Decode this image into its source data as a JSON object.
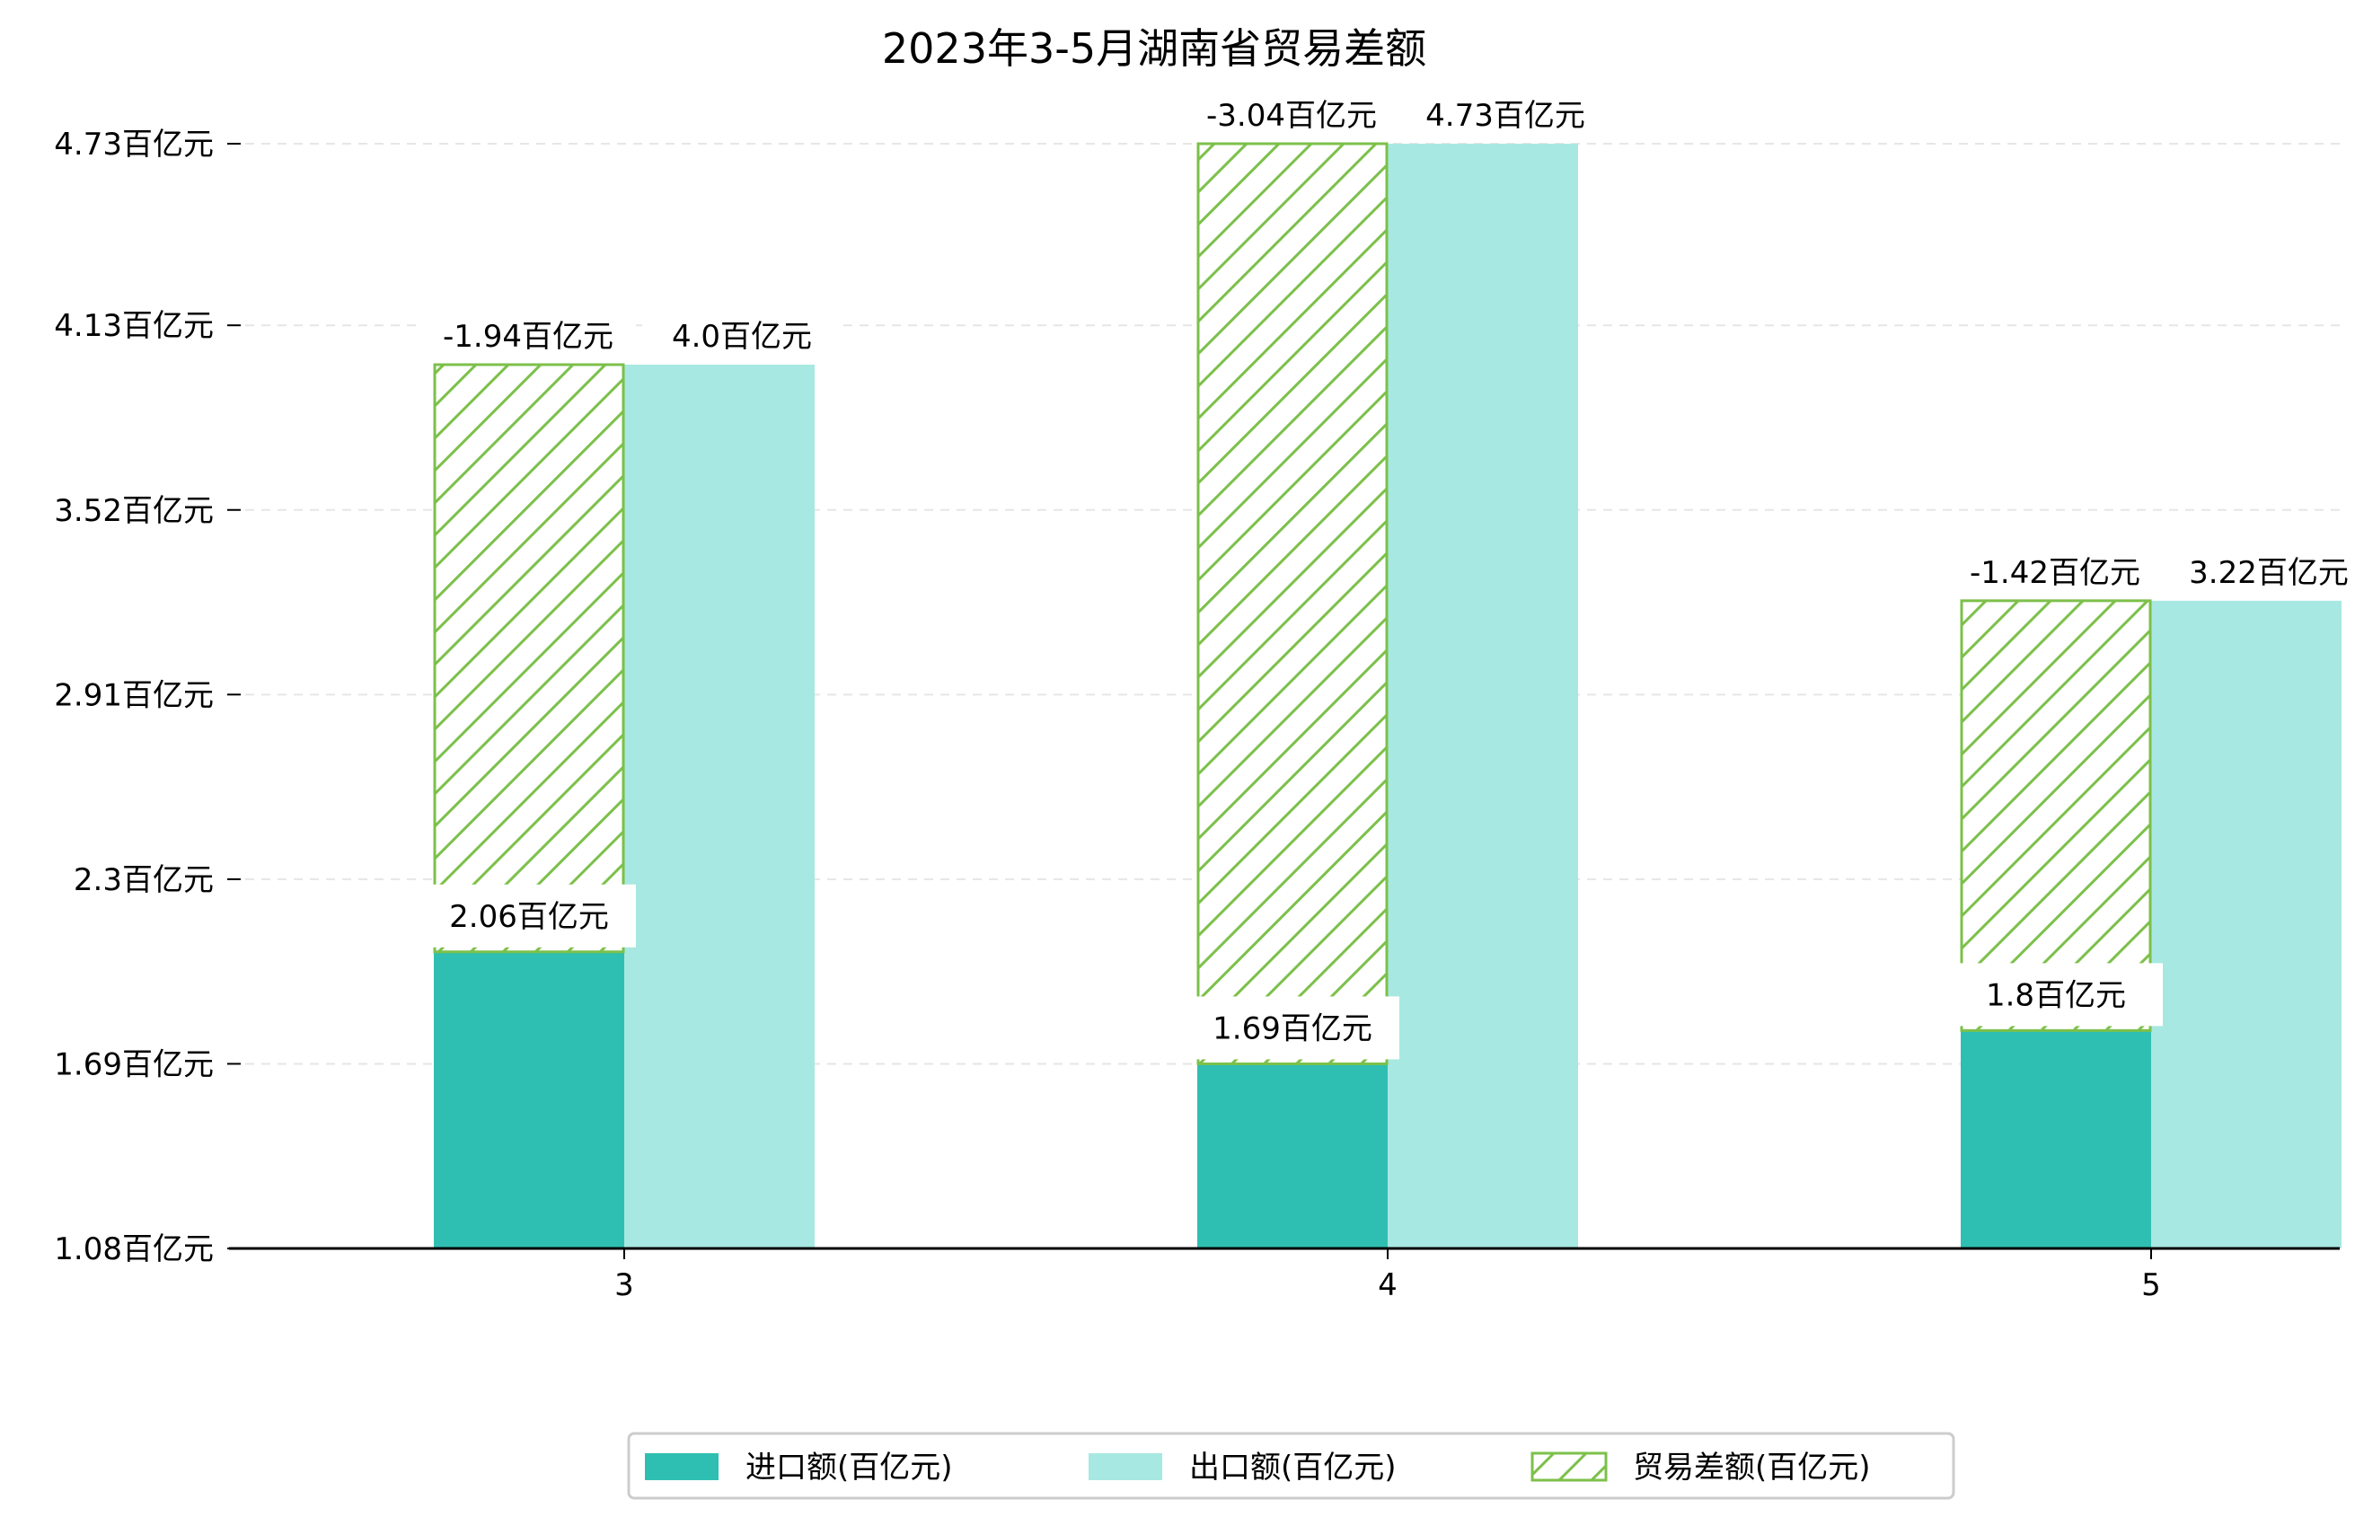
{
  "chart_data": {
    "type": "bar",
    "title": "2023年3-5月湖南省贸易差额",
    "categories": [
      "3",
      "4",
      "5"
    ],
    "y_unit": "百亿元",
    "ylim": [
      1.08,
      4.73
    ],
    "yticks": [
      "1.08百亿元",
      "1.69百亿元",
      "2.3百亿元",
      "2.91百亿元",
      "3.52百亿元",
      "4.13百亿元",
      "4.73百亿元"
    ],
    "ytick_values": [
      1.08,
      1.69,
      2.3,
      2.91,
      3.52,
      4.13,
      4.73
    ],
    "grid": "horizontal dashed",
    "legend_position": "bottom",
    "series": [
      {
        "name": "进口额(百亿元)",
        "values": [
          2.06,
          1.69,
          1.8
        ],
        "labels": [
          "2.06百亿元",
          "1.69百亿元",
          "1.8百亿元"
        ],
        "color": "#2fbfb2"
      },
      {
        "name": "出口额(百亿元)",
        "values": [
          4.0,
          4.73,
          3.22
        ],
        "labels": [
          "4.0百亿元",
          "4.73百亿元",
          "3.22百亿元"
        ],
        "color": "#a8e8e2"
      },
      {
        "name": "贸易差额(百亿元)",
        "values": [
          -1.94,
          -3.04,
          -1.42
        ],
        "labels": [
          "-1.94百亿元",
          "-3.04百亿元",
          "-1.42百亿元"
        ],
        "color": "#7cc04a",
        "stacked_on": "进口额(百亿元)",
        "pattern": "hatch"
      }
    ]
  }
}
